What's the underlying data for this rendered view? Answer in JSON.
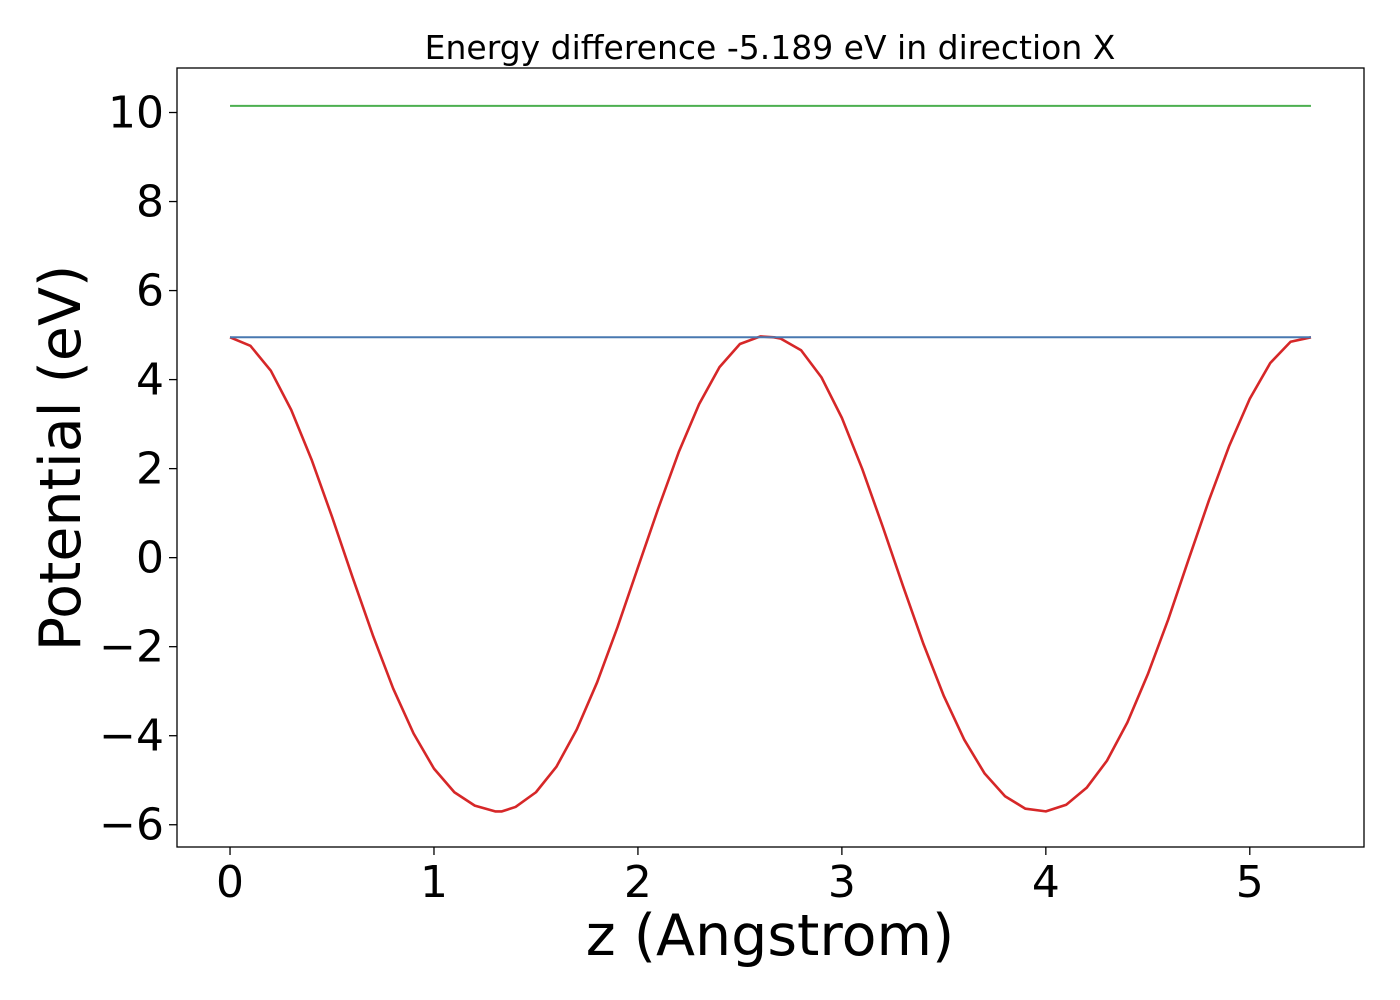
{
  "chart_data": {
    "type": "line",
    "title": "Energy difference -5.189 eV in direction X",
    "xlabel": "z (Angstrom)",
    "ylabel": "Potential (eV)",
    "xlim": [
      -0.26,
      5.56
    ],
    "ylim": [
      -6.5,
      11.0
    ],
    "xticks": [
      0,
      1,
      2,
      3,
      4,
      5
    ],
    "xtick_labels": [
      "0",
      "1",
      "2",
      "3",
      "4",
      "5"
    ],
    "yticks": [
      -6,
      -4,
      -2,
      0,
      2,
      4,
      6,
      8,
      10
    ],
    "ytick_labels": [
      "−6",
      "−4",
      "−2",
      "0",
      "2",
      "4",
      "6",
      "8",
      "10"
    ],
    "grid": false,
    "series": [
      {
        "color": "#d62728",
        "x": [
          0,
          0.1,
          0.2,
          0.3,
          0.4,
          0.5,
          0.6,
          0.7,
          0.8,
          0.9,
          1.0,
          1.1,
          1.2,
          1.3,
          1.333,
          1.4,
          1.5,
          1.6,
          1.7,
          1.8,
          1.9,
          2.0,
          2.1,
          2.2,
          2.3,
          2.4,
          2.5,
          2.6,
          2.667,
          2.7,
          2.8,
          2.9,
          3.0,
          3.1,
          3.2,
          3.3,
          3.4,
          3.5,
          3.6,
          3.7,
          3.8,
          3.9,
          4.0,
          4.1,
          4.2,
          4.3,
          4.4,
          4.5,
          4.6,
          4.7,
          4.8,
          4.9,
          5.0,
          5.1,
          5.2,
          5.3
        ],
        "y": [
          4.95,
          4.76,
          4.2,
          3.32,
          2.2,
          0.92,
          -0.43,
          -1.74,
          -2.94,
          -3.95,
          -4.74,
          -5.27,
          -5.57,
          -5.7,
          -5.7,
          -5.6,
          -5.27,
          -4.7,
          -3.86,
          -2.8,
          -1.56,
          -0.22,
          1.11,
          2.37,
          3.45,
          4.28,
          4.8,
          4.97,
          4.95,
          4.92,
          4.66,
          4.05,
          3.14,
          1.99,
          0.7,
          -0.64,
          -1.94,
          -3.11,
          -4.09,
          -4.85,
          -5.36,
          -5.64,
          -5.7,
          -5.55,
          -5.17,
          -4.56,
          -3.7,
          -2.62,
          -1.39,
          -0.04,
          1.29,
          2.52,
          3.57,
          4.37,
          4.85,
          4.95
        ]
      },
      {
        "color": "#4878b0",
        "x": [
          0,
          5.3
        ],
        "y": [
          4.95,
          4.95
        ]
      },
      {
        "color": "#4caf50",
        "x": [
          0,
          5.3
        ],
        "y": [
          10.15,
          10.15
        ]
      }
    ]
  }
}
